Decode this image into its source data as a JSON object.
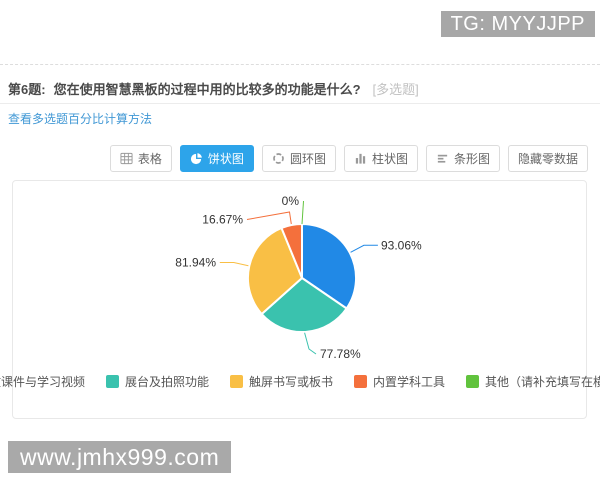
{
  "overlays": {
    "tg_badge": "TG: MYYJJPP",
    "site_badge": "www.jmhx999.com"
  },
  "question": {
    "number_label": "第6题:",
    "text": "您在使用智慧黑板的过程中用的比较多的功能是什么?",
    "type_tag": "[多选题]"
  },
  "links": {
    "percent_method": "查看多选题百分比计算方法"
  },
  "toolbar": {
    "active_tab_color": "#2da4ea",
    "tabs": [
      {
        "label": "表格",
        "icon": "table-icon",
        "active": false
      },
      {
        "label": "饼状图",
        "icon": "pie-icon",
        "active": true
      },
      {
        "label": "圆环图",
        "icon": "donut-icon",
        "active": false
      },
      {
        "label": "柱状图",
        "icon": "column-icon",
        "active": false
      },
      {
        "label": "条形图",
        "icon": "bar-icon",
        "active": false
      },
      {
        "label": "隐藏零数据",
        "icon": null,
        "active": false
      }
    ]
  },
  "chart_data": {
    "type": "pie",
    "title": "",
    "categories": [
      "播放课件与学习视频",
      "展台及拍照功能",
      "触屏书写或板书",
      "内置学科工具",
      "其他（请补充填写在横线上）"
    ],
    "values": [
      93.06,
      77.78,
      81.94,
      16.67,
      0
    ],
    "labels": [
      "93.06%",
      "77.78%",
      "81.94%",
      "16.67%",
      "0%"
    ],
    "colors": [
      "#2189e6",
      "#3ac2ae",
      "#f9bf45",
      "#f4703c",
      "#61c33d"
    ],
    "legend_position": "bottom",
    "start_angle_deg": 0,
    "direction": "clockwise"
  }
}
